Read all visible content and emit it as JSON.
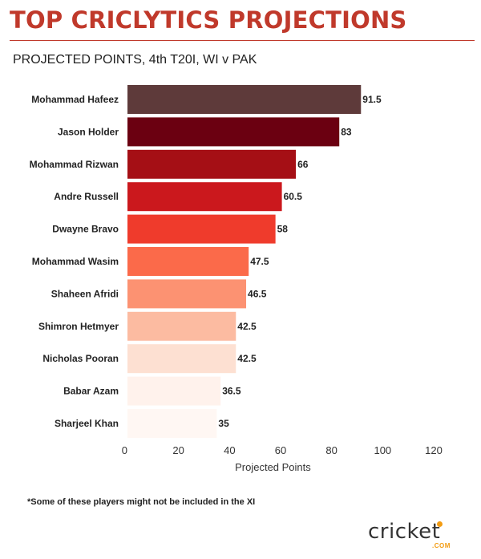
{
  "header": {
    "title": "TOP CRICLYTICS PROJECTIONS",
    "subtitle": "PROJECTED POINTS, 4th T20I, WI v PAK"
  },
  "footer": {
    "note": "*Some of these players might not be included in the XI",
    "logo_text": "cricket",
    "logo_suffix": ".COM"
  },
  "colors": {
    "title": "#c0392b",
    "logo_accent": "#f39c12"
  },
  "chart_data": {
    "type": "bar",
    "orientation": "horizontal",
    "title": "PROJECTED POINTS, 4th T20I, WI v PAK",
    "xlabel": "Projected Points",
    "ylabel": "",
    "xlim": [
      0,
      120
    ],
    "xticks": [
      0,
      20,
      40,
      60,
      80,
      100,
      120
    ],
    "grid": false,
    "categories": [
      "Mohammad Hafeez",
      "Jason Holder",
      "Mohammad Rizwan",
      "Andre Russell",
      "Dwayne Bravo",
      "Mohammad Wasim",
      "Shaheen Afridi",
      "Shimron Hetmyer",
      "Nicholas Pooran",
      "Babar Azam",
      "Sharjeel Khan"
    ],
    "values": [
      91.5,
      83,
      66,
      60.5,
      58,
      47.5,
      46.5,
      42.5,
      42.5,
      36.5,
      35
    ],
    "value_labels": [
      "91.5",
      "83",
      "66",
      "60.5",
      "58",
      "47.5",
      "46.5",
      "42.5",
      "42.5",
      "36.5",
      "35"
    ],
    "bar_colors": [
      "#5e3a3a",
      "#6b0011",
      "#a50f15",
      "#cb181d",
      "#ef3b2c",
      "#fb6a4a",
      "#fc9272",
      "#fcbba1",
      "#fde0d2",
      "#fff2ec",
      "#fff7f3"
    ]
  }
}
